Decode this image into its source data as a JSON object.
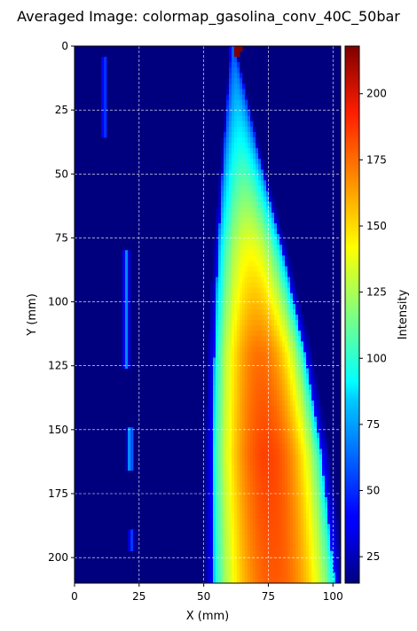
{
  "chart_data": {
    "type": "heatmap",
    "title": "Averaged Image: colormap_gasolina_conv_40C_50bar",
    "xlabel": "X (mm)",
    "ylabel": "Y (mm)",
    "xlim": [
      0,
      103
    ],
    "ylim": [
      210,
      0
    ],
    "xticks": [
      0,
      25,
      50,
      75,
      100
    ],
    "yticks": [
      0,
      25,
      50,
      75,
      100,
      125,
      150,
      175,
      200
    ],
    "grid": true,
    "colormap": "jet",
    "colorbar": {
      "label": "Intensity",
      "range": [
        15,
        218
      ],
      "ticks": [
        25,
        50,
        75,
        100,
        125,
        150,
        175,
        200
      ]
    },
    "background_intensity": 20,
    "features": {
      "nozzle": {
        "x": 63,
        "y": 2,
        "intensity": 218
      },
      "spray_left_edge": [
        [
          60,
          5
        ],
        [
          57,
          40
        ],
        [
          54,
          80
        ],
        [
          52,
          120
        ],
        [
          51,
          160
        ],
        [
          51,
          210
        ]
      ],
      "spray_right_edge": [
        [
          63,
          5
        ],
        [
          70,
          40
        ],
        [
          79,
          80
        ],
        [
          87,
          120
        ],
        [
          93,
          160
        ],
        [
          98,
          210
        ]
      ],
      "spray_core_intensity": [
        [
          5,
          60
        ],
        [
          40,
          95
        ],
        [
          80,
          140
        ],
        [
          120,
          170
        ],
        [
          160,
          180
        ],
        [
          210,
          175
        ]
      ],
      "streaks": [
        {
          "x": 11.5,
          "y_from": 5,
          "y_to": 35,
          "intensity": 60
        },
        {
          "x": 20,
          "y_from": 80,
          "y_to": 125,
          "intensity": 70
        },
        {
          "x": 21.5,
          "y_from": 150,
          "y_to": 165,
          "intensity": 85
        },
        {
          "x": 22,
          "y_from": 188,
          "y_to": 197,
          "intensity": 55
        }
      ]
    }
  }
}
